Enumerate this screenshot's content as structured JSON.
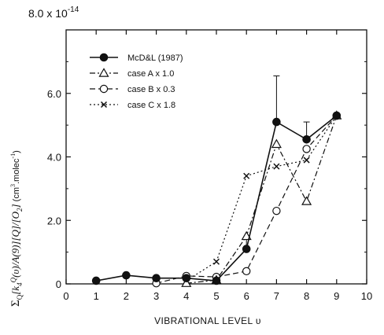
{
  "chart_data": {
    "type": "line",
    "xlabel": "VIBRATIONAL LEVEL  υ",
    "ylabel": "ΣQ[k4Q(υ)/A(9)][Q]/[O2]  (cm3.molec-1)",
    "y_multiplier": "8.0 x 10-14",
    "y_multiplier_base": "8.0 x 10",
    "y_multiplier_exp": "-14",
    "xlim": [
      0,
      10
    ],
    "ylim": [
      0,
      8
    ],
    "x_tick_labels": [
      "0",
      "1",
      "2",
      "3",
      "4",
      "5",
      "6",
      "7",
      "8",
      "9",
      "10"
    ],
    "y_ticks": [
      0,
      2,
      4,
      6
    ],
    "y_tick_labels": [
      "0",
      "2.0",
      "4.0",
      "6.0"
    ],
    "grid": false,
    "legend_position": "top-left",
    "series": [
      {
        "name": "McD&L (1987)",
        "style": "solid",
        "marker": "filled-circle",
        "x": [
          1,
          2,
          3,
          4,
          5,
          6,
          7,
          8,
          9
        ],
        "y": [
          0.1,
          0.27,
          0.18,
          0.18,
          0.1,
          1.1,
          5.1,
          4.55,
          5.3
        ],
        "error": [
          0,
          0,
          0,
          0,
          0,
          0.3,
          1.45,
          0.55,
          0
        ]
      },
      {
        "name": "case A x 1.0",
        "style": "dash-dot",
        "marker": "open-triangle",
        "x": [
          4,
          5,
          6,
          7,
          8,
          9
        ],
        "y": [
          0.02,
          0.12,
          1.5,
          4.4,
          2.6,
          5.3
        ]
      },
      {
        "name": "case B x 0.3",
        "style": "dashed",
        "marker": "open-circle",
        "x": [
          3,
          4,
          5,
          6,
          7,
          8,
          9
        ],
        "y": [
          0.02,
          0.25,
          0.22,
          0.4,
          2.3,
          4.25,
          5.3
        ]
      },
      {
        "name": "case C x 1.8",
        "style": "dotted",
        "marker": "x-cross",
        "x": [
          4,
          5,
          6,
          7,
          8,
          9
        ],
        "y": [
          0.1,
          0.7,
          3.4,
          3.7,
          3.9,
          5.3
        ]
      }
    ]
  }
}
